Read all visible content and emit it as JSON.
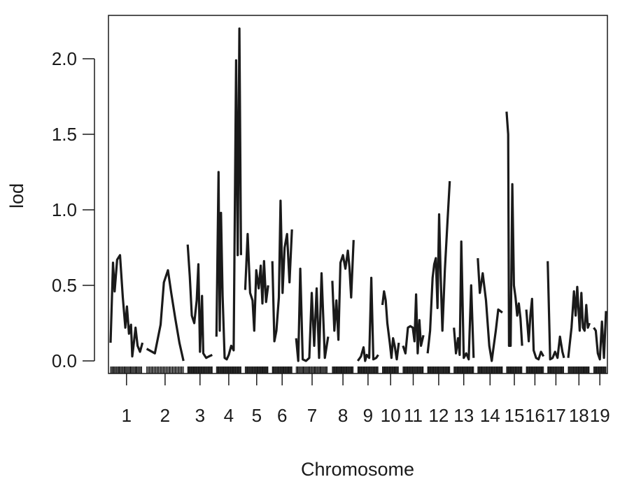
{
  "chart_data": {
    "type": "line",
    "xlabel": "Chromosome",
    "ylabel": "lod",
    "ylim": [
      -0.09,
      2.3
    ],
    "yticks": [
      0.0,
      0.5,
      1.0,
      1.5,
      2.0
    ],
    "ytick_labels": [
      "0.0",
      "0.5",
      "1.0",
      "1.5",
      "2.0"
    ],
    "grid": false,
    "chromosomes": [
      {
        "label": "1",
        "points": [
          [
            0,
            0.12
          ],
          [
            6,
            0.65
          ],
          [
            10,
            0.46
          ],
          [
            16,
            0.67
          ],
          [
            23,
            0.7
          ],
          [
            30,
            0.42
          ],
          [
            36,
            0.22
          ],
          [
            40,
            0.36
          ],
          [
            45,
            0.18
          ],
          [
            50,
            0.24
          ],
          [
            53,
            0.03
          ],
          [
            57,
            0.12
          ],
          [
            61,
            0.22
          ],
          [
            66,
            0.1
          ],
          [
            72,
            0.06
          ],
          [
            78,
            0.12
          ]
        ]
      },
      {
        "label": "2",
        "points": [
          [
            0,
            0.08
          ],
          [
            20,
            0.05
          ],
          [
            34,
            0.24
          ],
          [
            42,
            0.52
          ],
          [
            52,
            0.6
          ],
          [
            60,
            0.45
          ],
          [
            70,
            0.28
          ],
          [
            80,
            0.12
          ],
          [
            90,
            0.0
          ]
        ]
      },
      {
        "label": "3",
        "points": [
          [
            0,
            0.77
          ],
          [
            5,
            0.56
          ],
          [
            10,
            0.3
          ],
          [
            16,
            0.25
          ],
          [
            22,
            0.4
          ],
          [
            26,
            0.64
          ],
          [
            30,
            0.06
          ],
          [
            35,
            0.43
          ],
          [
            38,
            0.05
          ],
          [
            45,
            0.02
          ],
          [
            52,
            0.03
          ],
          [
            60,
            0.04
          ]
        ]
      },
      {
        "label": "4",
        "points": [
          [
            0,
            0.16
          ],
          [
            5,
            1.25
          ],
          [
            8,
            0.2
          ],
          [
            11,
            0.98
          ],
          [
            15,
            0.43
          ],
          [
            20,
            0.02
          ],
          [
            25,
            0.01
          ],
          [
            30,
            0.04
          ],
          [
            36,
            0.1
          ],
          [
            42,
            0.07
          ],
          [
            48,
            1.99
          ],
          [
            52,
            0.7
          ],
          [
            56,
            2.2
          ],
          [
            60,
            0.7
          ]
        ]
      },
      {
        "label": "5",
        "points": [
          [
            0,
            0.47
          ],
          [
            6,
            0.84
          ],
          [
            12,
            0.45
          ],
          [
            18,
            0.4
          ],
          [
            22,
            0.2
          ],
          [
            27,
            0.6
          ],
          [
            33,
            0.48
          ],
          [
            38,
            0.63
          ],
          [
            42,
            0.38
          ],
          [
            46,
            0.66
          ],
          [
            51,
            0.39
          ],
          [
            56,
            0.5
          ]
        ]
      },
      {
        "label": "6",
        "points": [
          [
            0,
            0.66
          ],
          [
            5,
            0.13
          ],
          [
            10,
            0.2
          ],
          [
            16,
            0.42
          ],
          [
            20,
            1.06
          ],
          [
            25,
            0.45
          ],
          [
            30,
            0.75
          ],
          [
            36,
            0.84
          ],
          [
            42,
            0.52
          ],
          [
            48,
            0.87
          ]
        ]
      },
      {
        "label": "7",
        "points": [
          [
            0,
            0.15
          ],
          [
            5,
            0.0
          ],
          [
            10,
            0.61
          ],
          [
            16,
            0.01
          ],
          [
            24,
            0.0
          ],
          [
            32,
            0.02
          ],
          [
            38,
            0.45
          ],
          [
            44,
            0.1
          ],
          [
            50,
            0.48
          ],
          [
            56,
            0.02
          ],
          [
            62,
            0.58
          ],
          [
            70,
            0.02
          ],
          [
            78,
            0.16
          ]
        ]
      },
      {
        "label": "8",
        "points": [
          [
            0,
            0.53
          ],
          [
            5,
            0.2
          ],
          [
            10,
            0.4
          ],
          [
            15,
            0.14
          ],
          [
            20,
            0.65
          ],
          [
            26,
            0.7
          ],
          [
            32,
            0.61
          ],
          [
            38,
            0.73
          ],
          [
            42,
            0.62
          ],
          [
            46,
            0.42
          ],
          [
            52,
            0.8
          ]
        ]
      },
      {
        "label": "9",
        "points": [
          [
            0,
            0.0
          ],
          [
            8,
            0.03
          ],
          [
            14,
            0.09
          ],
          [
            18,
            0.0
          ],
          [
            22,
            0.04
          ],
          [
            28,
            0.02
          ],
          [
            33,
            0.55
          ],
          [
            38,
            0.01
          ],
          [
            45,
            0.02
          ],
          [
            50,
            0.04
          ]
        ]
      },
      {
        "label": "10",
        "points": [
          [
            0,
            0.37
          ],
          [
            4,
            0.46
          ],
          [
            8,
            0.4
          ],
          [
            12,
            0.25
          ],
          [
            18,
            0.12
          ],
          [
            22,
            0.02
          ],
          [
            26,
            0.15
          ],
          [
            30,
            0.1
          ],
          [
            35,
            0.01
          ],
          [
            40,
            0.12
          ]
        ]
      },
      {
        "label": "11",
        "points": [
          [
            0,
            0.1
          ],
          [
            6,
            0.05
          ],
          [
            12,
            0.22
          ],
          [
            18,
            0.23
          ],
          [
            24,
            0.22
          ],
          [
            28,
            0.13
          ],
          [
            32,
            0.44
          ],
          [
            36,
            0.05
          ],
          [
            40,
            0.27
          ],
          [
            44,
            0.1
          ],
          [
            50,
            0.17
          ]
        ]
      },
      {
        "label": "12",
        "points": [
          [
            0,
            0.05
          ],
          [
            6,
            0.2
          ],
          [
            12,
            0.55
          ],
          [
            16,
            0.64
          ],
          [
            20,
            0.68
          ],
          [
            24,
            0.35
          ],
          [
            28,
            0.97
          ],
          [
            32,
            0.55
          ],
          [
            36,
            0.2
          ],
          [
            42,
            0.6
          ],
          [
            48,
            0.9
          ],
          [
            54,
            1.19
          ]
        ]
      },
      {
        "label": "13",
        "points": [
          [
            0,
            0.22
          ],
          [
            5,
            0.05
          ],
          [
            10,
            0.15
          ],
          [
            14,
            0.04
          ],
          [
            18,
            0.79
          ],
          [
            24,
            0.02
          ],
          [
            30,
            0.05
          ],
          [
            36,
            0.01
          ],
          [
            42,
            0.5
          ],
          [
            48,
            0.02
          ]
        ]
      },
      {
        "label": "14",
        "points": [
          [
            0,
            0.68
          ],
          [
            5,
            0.45
          ],
          [
            12,
            0.58
          ],
          [
            20,
            0.4
          ],
          [
            28,
            0.1
          ],
          [
            34,
            0.0
          ],
          [
            38,
            0.08
          ],
          [
            44,
            0.2
          ],
          [
            50,
            0.34
          ],
          [
            60,
            0.32
          ]
        ]
      },
      {
        "label": "15",
        "points": [
          [
            0,
            1.65
          ],
          [
            4,
            1.5
          ],
          [
            6,
            0.1
          ],
          [
            10,
            0.1
          ],
          [
            14,
            1.17
          ],
          [
            18,
            0.5
          ],
          [
            22,
            0.42
          ],
          [
            26,
            0.3
          ],
          [
            30,
            0.38
          ],
          [
            34,
            0.28
          ],
          [
            38,
            0.1
          ]
        ]
      },
      {
        "label": "16",
        "points": [
          [
            0,
            0.34
          ],
          [
            6,
            0.13
          ],
          [
            10,
            0.3
          ],
          [
            14,
            0.41
          ],
          [
            18,
            0.07
          ],
          [
            24,
            0.02
          ],
          [
            30,
            0.01
          ],
          [
            36,
            0.06
          ],
          [
            42,
            0.03
          ]
        ]
      },
      {
        "label": "17",
        "points": [
          [
            0,
            0.66
          ],
          [
            6,
            0.01
          ],
          [
            12,
            0.02
          ],
          [
            18,
            0.06
          ],
          [
            24,
            0.02
          ],
          [
            30,
            0.16
          ],
          [
            36,
            0.06
          ],
          [
            40,
            0.02
          ]
        ]
      },
      {
        "label": "18",
        "points": [
          [
            0,
            0.02
          ],
          [
            8,
            0.22
          ],
          [
            14,
            0.46
          ],
          [
            18,
            0.3
          ],
          [
            22,
            0.49
          ],
          [
            28,
            0.2
          ],
          [
            32,
            0.45
          ],
          [
            36,
            0.22
          ],
          [
            40,
            0.2
          ],
          [
            44,
            0.37
          ],
          [
            48,
            0.22
          ],
          [
            52,
            0.25
          ]
        ]
      },
      {
        "label": "19",
        "points": [
          [
            0,
            0.22
          ],
          [
            5,
            0.2
          ],
          [
            10,
            0.05
          ],
          [
            15,
            0.01
          ],
          [
            20,
            0.26
          ],
          [
            25,
            0.02
          ],
          [
            30,
            0.33
          ]
        ]
      }
    ]
  }
}
